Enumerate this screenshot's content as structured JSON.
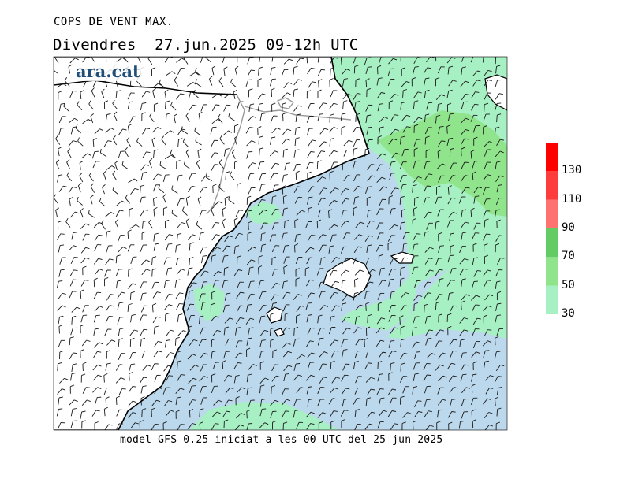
{
  "header": {
    "title": "COPS DE VENT MAX.",
    "date_line": "Divendres  27.jun.2025 09-12h UTC"
  },
  "logo": {
    "text": "ara.cat"
  },
  "footer": {
    "model_text": "model GFS 0.25 iniciat a les 00 UTC del 25 jun 2025"
  },
  "legend": {
    "labels": [
      "30",
      "50",
      "70",
      "90",
      "110",
      "130"
    ],
    "bands": [
      {
        "from": 30,
        "to": 50,
        "color": "#a7f0c4"
      },
      {
        "from": 50,
        "to": 70,
        "color": "#8fe48c"
      },
      {
        "from": 70,
        "to": 90,
        "color": "#64cc64"
      },
      {
        "from": 90,
        "to": 110,
        "color": "#ff7272"
      },
      {
        "from": 110,
        "to": 130,
        "color": "#ff3c3c"
      },
      {
        "from": 130,
        "to": 150,
        "color": "#ff0000"
      }
    ]
  },
  "colors": {
    "sea_base": "#bcd8ec",
    "land": "#ffffff",
    "coast": "#000000",
    "border": "#999999"
  }
}
